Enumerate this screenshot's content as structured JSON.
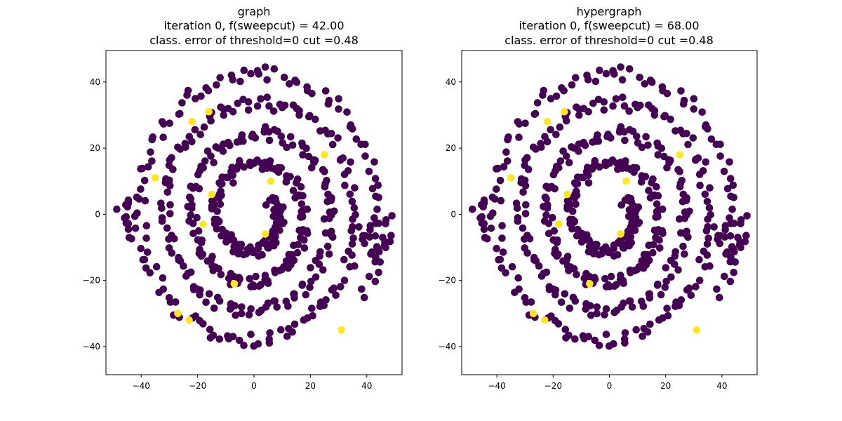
{
  "chart_data": [
    {
      "type": "scatter",
      "title": "graph",
      "subtitle_lines": [
        "iteration 0, f(sweepcut) = 42.00",
        "class. error of threshold=0 cut =0.48"
      ],
      "xlim": [
        -52.5,
        52.5
      ],
      "ylim": [
        -48.5,
        49.5
      ],
      "xticks": [
        -40,
        -20,
        0,
        20,
        40
      ],
      "yticks": [
        -40,
        -20,
        0,
        20,
        40
      ],
      "xtick_labels": [
        "−40",
        "−20",
        "0",
        "20",
        "40"
      ],
      "ytick_labels": [
        "−40",
        "−20",
        "0",
        "20",
        "40"
      ],
      "grid": false,
      "colors": {
        "class0": "#440154",
        "class1": "#fde725"
      },
      "series": [
        {
          "class": 0,
          "points": "SPIRAL_CLASS0"
        },
        {
          "class": 1,
          "points": [
            [
              -16,
              31
            ],
            [
              -22,
              28
            ],
            [
              -35,
              11
            ],
            [
              -15,
              6
            ],
            [
              6,
              10
            ],
            [
              25,
              18
            ],
            [
              -18,
              -3
            ],
            [
              4,
              -6
            ],
            [
              -7,
              -21
            ],
            [
              -27,
              -30
            ],
            [
              -23,
              -32
            ],
            [
              31,
              -35
            ]
          ]
        }
      ]
    },
    {
      "type": "scatter",
      "title": "hypergraph",
      "subtitle_lines": [
        "iteration 0, f(sweepcut) = 68.00",
        "class. error of threshold=0 cut =0.48"
      ],
      "xlim": [
        -52.5,
        52.5
      ],
      "ylim": [
        -48.5,
        49.5
      ],
      "xticks": [
        -40,
        -20,
        0,
        20,
        40
      ],
      "yticks": [
        -40,
        -20,
        0,
        20,
        40
      ],
      "xtick_labels": [
        "−40",
        "−20",
        "0",
        "20",
        "40"
      ],
      "ytick_labels": [
        "−40",
        "−20",
        "0",
        "20",
        "40"
      ],
      "grid": false,
      "colors": {
        "class0": "#440154",
        "class1": "#fde725"
      },
      "series": [
        {
          "class": 0,
          "points": "SPIRAL_CLASS0"
        },
        {
          "class": 1,
          "points": [
            [
              -16,
              31
            ],
            [
              -22,
              28
            ],
            [
              -35,
              11
            ],
            [
              -15,
              6
            ],
            [
              6,
              10
            ],
            [
              25,
              18
            ],
            [
              -18,
              -3
            ],
            [
              4,
              -6
            ],
            [
              -7,
              -21
            ],
            [
              -27,
              -30
            ],
            [
              -23,
              -32
            ],
            [
              31,
              -35
            ]
          ]
        }
      ]
    }
  ]
}
